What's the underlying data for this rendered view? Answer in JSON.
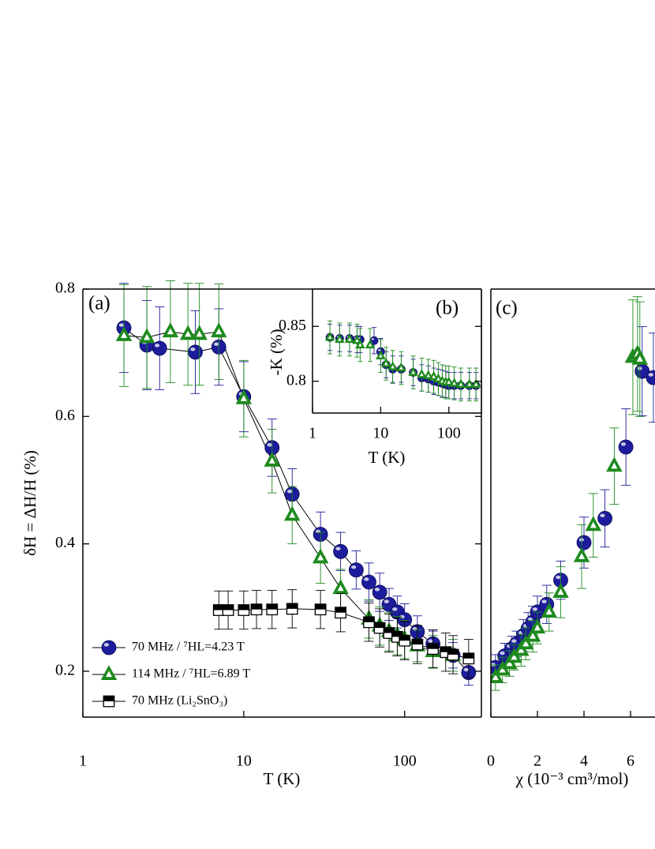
{
  "chart_data": [
    {
      "type": "scatter",
      "label": "(a)",
      "xlabel": "T (K)",
      "ylabel": "δH = ΔH/H (%)",
      "xscale": "log",
      "xlim": [
        1,
        300
      ],
      "ylim": [
        0.128,
        0.8
      ],
      "xticks": [
        1,
        10,
        100
      ],
      "yticks": [
        0.2,
        0.4,
        0.6,
        0.8
      ],
      "legend": "lower left",
      "series": [
        {
          "name": "70 MHz  / ⁷HL=4.23 T",
          "color": "#1c1c9c",
          "marker": "circle",
          "line": true,
          "x": [
            1.8,
            2.5,
            3,
            5,
            7,
            10,
            15,
            20,
            30,
            40,
            50,
            60,
            70,
            80,
            90,
            100,
            120,
            150,
            200,
            250
          ],
          "values": [
            0.739,
            0.712,
            0.707,
            0.701,
            0.709,
            0.631,
            0.551,
            0.478,
            0.415,
            0.388,
            0.359,
            0.34,
            0.324,
            0.305,
            0.293,
            0.281,
            0.262,
            0.243,
            0.225,
            0.198
          ],
          "errors": [
            0.07,
            0.07,
            0.065,
            0.065,
            0.06,
            0.055,
            0.045,
            0.04,
            0.035,
            0.03,
            0.03,
            0.03,
            0.03,
            0.025,
            0.025,
            0.025,
            0.025,
            0.02,
            0.02,
            0.02
          ]
        },
        {
          "name": "114 MHz / ⁷HL=6.89 T",
          "color": "#1e8a1e",
          "marker": "triangle",
          "line": true,
          "x": [
            1.8,
            2.5,
            3.5,
            4.5,
            5.3,
            7,
            10,
            15,
            20,
            30,
            40,
            60,
            70,
            80,
            90,
            100,
            120,
            150,
            200
          ],
          "values": [
            0.727,
            0.724,
            0.733,
            0.729,
            0.729,
            0.733,
            0.628,
            0.53,
            0.445,
            0.378,
            0.33,
            0.282,
            0.271,
            0.262,
            0.256,
            0.25,
            0.24,
            0.231,
            0.225
          ],
          "errors": [
            0.08,
            0.08,
            0.08,
            0.08,
            0.08,
            0.075,
            0.06,
            0.05,
            0.045,
            0.04,
            0.03,
            0.03,
            0.03,
            0.03,
            0.03,
            0.03,
            0.025,
            0.025,
            0.025
          ]
        },
        {
          "name": "70 MHz  (Li₂SnO₃)",
          "color": "#000000",
          "marker": "square",
          "line": true,
          "x": [
            7,
            8,
            10,
            12,
            15,
            20,
            30,
            40,
            60,
            70,
            80,
            90,
            100,
            120,
            150,
            180,
            200,
            250
          ],
          "values": [
            0.296,
            0.296,
            0.296,
            0.297,
            0.297,
            0.298,
            0.297,
            0.292,
            0.277,
            0.268,
            0.26,
            0.254,
            0.248,
            0.242,
            0.235,
            0.23,
            0.226,
            0.22
          ],
          "errors": [
            0.03,
            0.03,
            0.03,
            0.03,
            0.03,
            0.03,
            0.03,
            0.03,
            0.03,
            0.03,
            0.03,
            0.03,
            0.03,
            0.03,
            0.03,
            0.03,
            0.03,
            0.03
          ]
        }
      ]
    },
    {
      "type": "scatter",
      "label": "(b)",
      "xlabel": "T (K)",
      "ylabel": "-K (%)",
      "xscale": "log",
      "xlim": [
        1,
        300
      ],
      "ylim": [
        0.771,
        0.884
      ],
      "xticks": [
        1,
        10,
        100
      ],
      "yticks": [
        0.8,
        0.85
      ],
      "series": [
        {
          "color": "#1c1c9c",
          "marker": "circle",
          "x": [
            1.8,
            2.5,
            3.5,
            4.5,
            5,
            8,
            10,
            12,
            15,
            20,
            30,
            40,
            50,
            60,
            70,
            80,
            90,
            100,
            120,
            150,
            200,
            250
          ],
          "values": [
            0.84,
            0.839,
            0.839,
            0.838,
            0.838,
            0.837,
            0.827,
            0.815,
            0.811,
            0.811,
            0.808,
            0.803,
            0.802,
            0.8,
            0.799,
            0.798,
            0.797,
            0.796,
            0.796,
            0.796,
            0.796,
            0.796
          ],
          "errors": [
            0.012,
            0.012,
            0.012,
            0.012,
            0.012,
            0.012,
            0.012,
            0.012,
            0.012,
            0.012,
            0.012,
            0.012,
            0.012,
            0.012,
            0.012,
            0.012,
            0.012,
            0.012,
            0.012,
            0.012,
            0.012,
            0.012
          ]
        },
        {
          "color": "#1e8a1e",
          "marker": "triangle",
          "x": [
            1.8,
            2.5,
            3.5,
            4.5,
            5,
            7,
            10,
            12,
            15,
            20,
            30,
            40,
            50,
            60,
            70,
            80,
            90,
            100,
            120,
            150,
            200,
            250
          ],
          "values": [
            0.84,
            0.838,
            0.838,
            0.837,
            0.833,
            0.833,
            0.823,
            0.816,
            0.813,
            0.812,
            0.808,
            0.806,
            0.805,
            0.804,
            0.802,
            0.8,
            0.799,
            0.799,
            0.798,
            0.797,
            0.797,
            0.797
          ],
          "errors": [
            0.015,
            0.015,
            0.015,
            0.015,
            0.015,
            0.015,
            0.015,
            0.015,
            0.015,
            0.015,
            0.015,
            0.015,
            0.015,
            0.015,
            0.015,
            0.015,
            0.015,
            0.015,
            0.015,
            0.015,
            0.015,
            0.015
          ]
        }
      ]
    },
    {
      "type": "scatter",
      "label": "(c)",
      "xlabel": "χ (10⁻³ cm³/mol)",
      "xlim": [
        0,
        7.05
      ],
      "ylim": [
        0.128,
        0.8
      ],
      "xticks": [
        0,
        2,
        4,
        6
      ],
      "series": [
        {
          "color": "#1c1c9c",
          "marker": "circle",
          "x": [
            0.2,
            0.6,
            0.9,
            1.1,
            1.4,
            1.6,
            1.8,
            2.0,
            2.4,
            3.0,
            4.0,
            4.9,
            5.8,
            6.5,
            6.98
          ],
          "values": [
            0.206,
            0.224,
            0.235,
            0.243,
            0.256,
            0.267,
            0.277,
            0.293,
            0.305,
            0.343,
            0.402,
            0.44,
            0.552,
            0.671,
            0.661
          ],
          "errors": [
            0.02,
            0.02,
            0.02,
            0.02,
            0.025,
            0.025,
            0.025,
            0.025,
            0.03,
            0.03,
            0.04,
            0.045,
            0.06,
            0.07,
            0.07
          ]
        },
        {
          "color": "#1e8a1e",
          "marker": "triangle",
          "x": [
            0.2,
            0.5,
            0.8,
            1.0,
            1.3,
            1.5,
            1.8,
            2.0,
            2.5,
            3.0,
            3.9,
            4.4,
            5.3,
            6.1,
            6.3,
            6.4
          ],
          "values": [
            0.19,
            0.202,
            0.212,
            0.222,
            0.233,
            0.243,
            0.255,
            0.268,
            0.293,
            0.324,
            0.38,
            0.429,
            0.522,
            0.693,
            0.698,
            0.69
          ],
          "errors": [
            0.02,
            0.02,
            0.02,
            0.02,
            0.025,
            0.025,
            0.025,
            0.025,
            0.03,
            0.04,
            0.05,
            0.05,
            0.06,
            0.09,
            0.09,
            0.09
          ]
        }
      ]
    }
  ]
}
